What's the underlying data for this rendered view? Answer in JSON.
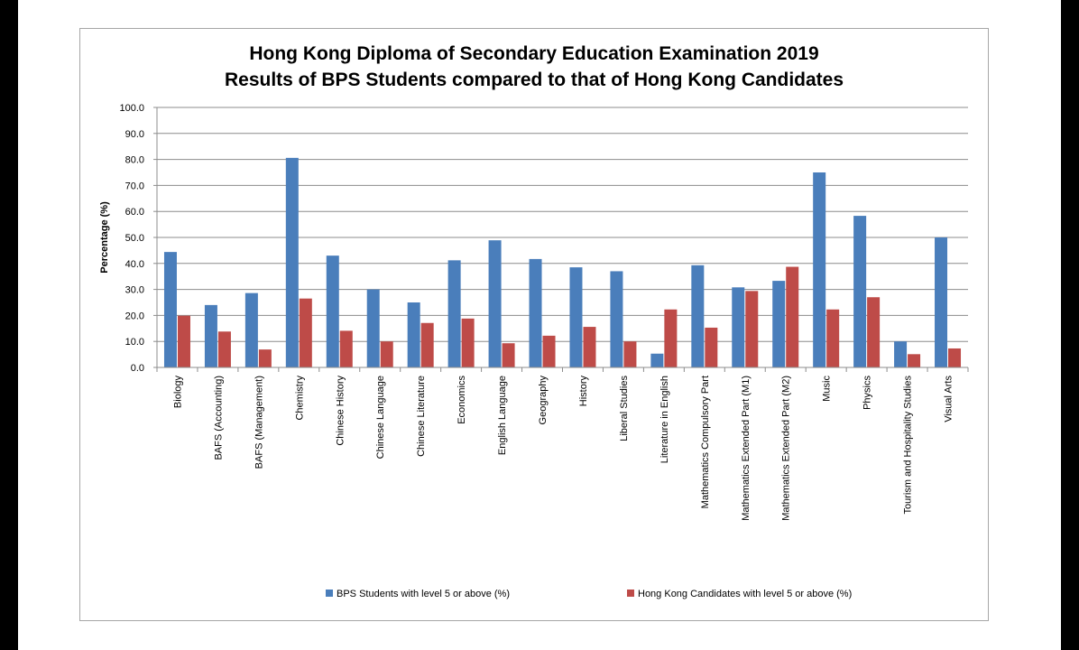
{
  "chart_data": {
    "type": "bar",
    "title_lines": [
      "Hong Kong Diploma of Secondary Education Examination 2019",
      "Results of BPS Students compared to that of Hong Kong Candidates"
    ],
    "xlabel": "",
    "ylabel": "Percentage (%)",
    "ylim": [
      0,
      100
    ],
    "yticks": [
      "0.0",
      "10.0",
      "20.0",
      "30.0",
      "40.0",
      "50.0",
      "60.0",
      "70.0",
      "80.0",
      "90.0",
      "100.0"
    ],
    "grid": true,
    "legend_position": "bottom",
    "categories": [
      "Biology",
      "BAFS (Accounting)",
      "BAFS (Management)",
      "Chemistry",
      "Chinese History",
      "Chinese Language",
      "Chinese Literature",
      "Economics",
      "English Language",
      "Geography",
      "History",
      "Liberal Studies",
      "Literature in English",
      "Mathematics Compulsory Part",
      "Mathematics Extended Part (M1)",
      "Mathematics Extended Part (M2)",
      "Music",
      "Physics",
      "Tourism and Hospitality Studies",
      "Visual Arts"
    ],
    "series": [
      {
        "name": "BPS Students with level 5 or above (%)",
        "color": "#4a7ebb",
        "values": [
          44.4,
          24.0,
          28.6,
          80.6,
          43.0,
          30.0,
          25.0,
          41.2,
          48.9,
          41.7,
          38.5,
          37.0,
          5.3,
          39.3,
          30.8,
          33.3,
          75.0,
          58.3,
          10.0,
          50.0
        ]
      },
      {
        "name": "Hong Kong Candidates with level 5 or above (%)",
        "color": "#be4b48",
        "values": [
          19.9,
          13.8,
          6.9,
          26.5,
          14.1,
          10.0,
          17.1,
          18.8,
          9.3,
          12.2,
          15.6,
          10.0,
          22.3,
          15.3,
          29.4,
          38.7,
          22.3,
          27.0,
          5.1,
          7.3
        ]
      }
    ]
  }
}
